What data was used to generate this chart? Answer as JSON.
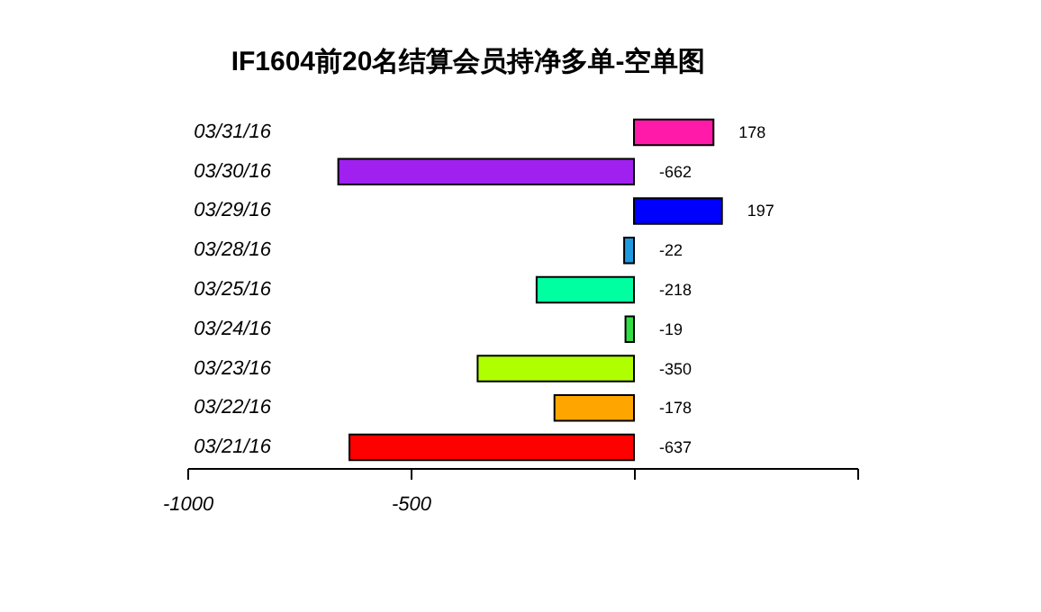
{
  "chart_data": {
    "type": "bar",
    "orientation": "horizontal",
    "title": "IF1604前20名结算会员持净多单-空单图",
    "categories": [
      "03/31/16",
      "03/30/16",
      "03/29/16",
      "03/28/16",
      "03/25/16",
      "03/24/16",
      "03/23/16",
      "03/22/16",
      "03/21/16"
    ],
    "values": [
      178,
      -662,
      197,
      -22,
      -218,
      -19,
      -350,
      -178,
      -637
    ],
    "colors": [
      "#ff1aaa",
      "#a020f0",
      "#0000ff",
      "#1e9be0",
      "#00ffa0",
      "#33dd44",
      "#b0ff00",
      "#ffa500",
      "#ff0000"
    ],
    "xlim": [
      -1000,
      500
    ],
    "xticks": [
      -1000,
      -500,
      {
        "value": 0,
        "label": null
      },
      {
        "value": 500,
        "label": null
      }
    ],
    "data_labels": true,
    "grid": false
  }
}
